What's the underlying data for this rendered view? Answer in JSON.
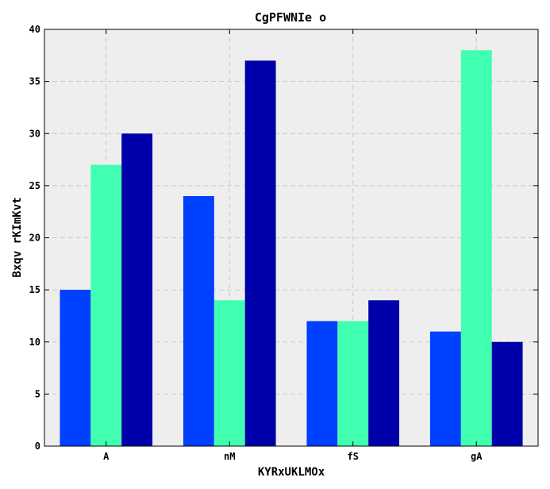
{
  "chart_data": {
    "type": "bar",
    "title": "CgPFWNIe o",
    "xlabel": "KYRxUKLMOx",
    "ylabel": "Bxqv rKImKvt",
    "categories": [
      "A",
      "nM",
      "fS",
      "gA"
    ],
    "series": [
      {
        "values": [
          15,
          24,
          12,
          11
        ],
        "color": "#0040ff"
      },
      {
        "values": [
          27,
          14,
          12,
          38
        ],
        "color": "#40ffb0"
      },
      {
        "values": [
          30,
          37,
          14,
          10
        ],
        "color": "#0000aa"
      }
    ],
    "ylim": [
      0,
      40
    ],
    "yticks": [
      "0",
      "5",
      "10",
      "15",
      "20",
      "25",
      "30",
      "35",
      "40"
    ],
    "grid": true,
    "plot_background": "#eeeeee"
  }
}
